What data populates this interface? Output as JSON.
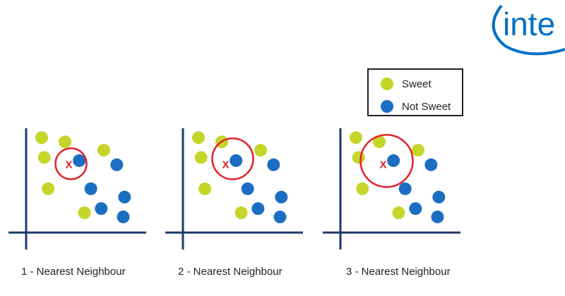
{
  "logo": {
    "text": "inte"
  },
  "legend": {
    "items": [
      {
        "label": "Sweet",
        "color": "#c5d52a"
      },
      {
        "label": "Not Sweet",
        "color": "#1b6ec2"
      }
    ]
  },
  "colors": {
    "axis": "#1c3a6b",
    "circle": "#e0232b",
    "query": "#e0232b"
  },
  "query_marker": "X",
  "panels": [
    {
      "caption": "1 - Nearest Neighbour",
      "k": 1
    },
    {
      "caption": "2 - Nearest Neighbour",
      "k": 2
    },
    {
      "caption": "3 - Nearest Neighbour",
      "k": 3
    }
  ],
  "chart_data": {
    "type": "scatter",
    "series": [
      {
        "name": "Sweet",
        "points": [
          [
            1.2,
            9.1
          ],
          [
            1.4,
            7.2
          ],
          [
            3.0,
            8.7
          ],
          [
            6.0,
            7.9
          ],
          [
            1.7,
            4.2
          ],
          [
            4.5,
            1.9
          ]
        ]
      },
      {
        "name": "Not Sweet",
        "points": [
          [
            4.1,
            6.9
          ],
          [
            5.0,
            4.2
          ],
          [
            7.0,
            6.5
          ],
          [
            5.8,
            2.3
          ],
          [
            7.6,
            3.4
          ],
          [
            7.5,
            1.5
          ]
        ]
      }
    ],
    "query": [
      3.3,
      6.6
    ],
    "xlim": [
      0,
      9
    ],
    "ylim": [
      0,
      10
    ]
  }
}
